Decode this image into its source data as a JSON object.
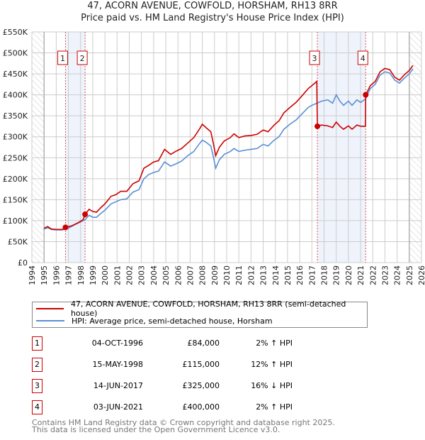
{
  "chart_data": {
    "type": "line",
    "title": "47, ACORN AVENUE, COWFOLD, HORSHAM, RH13 8RR",
    "subtitle": "Price paid vs. HM Land Registry's House Price Index (HPI)",
    "xlim": [
      1994,
      2026
    ],
    "ylim": [
      0,
      550000
    ],
    "x_ticks": [
      "1994",
      "1995",
      "1996",
      "1997",
      "1998",
      "1999",
      "2000",
      "2001",
      "2002",
      "2003",
      "2004",
      "2005",
      "2006",
      "2007",
      "2008",
      "2009",
      "2010",
      "2011",
      "2012",
      "2013",
      "2014",
      "2015",
      "2016",
      "2017",
      "2018",
      "2019",
      "2020",
      "2021",
      "2022",
      "2023",
      "2024",
      "2025",
      "2026"
    ],
    "y_ticks": [
      {
        "v": 0,
        "label": "£0"
      },
      {
        "v": 50000,
        "label": "£50K"
      },
      {
        "v": 100000,
        "label": "£100K"
      },
      {
        "v": 150000,
        "label": "£150K"
      },
      {
        "v": 200000,
        "label": "£200K"
      },
      {
        "v": 250000,
        "label": "£250K"
      },
      {
        "v": 300000,
        "label": "£300K"
      },
      {
        "v": 350000,
        "label": "£350K"
      },
      {
        "v": 400000,
        "label": "£400K"
      },
      {
        "v": 450000,
        "label": "£450K"
      },
      {
        "v": 500000,
        "label": "£500K"
      },
      {
        "v": 550000,
        "label": "£550K"
      }
    ],
    "grid": true,
    "hatched_ranges": [
      [
        1994,
        1995
      ],
      [
        2025,
        2026
      ]
    ],
    "shaded_ranges": [
      [
        1996.76,
        1998.37
      ],
      [
        2017.45,
        2021.42
      ]
    ],
    "series": [
      {
        "name": "47, ACORN AVENUE, COWFOLD, HORSHAM, RH13 8RR (semi-detached house)",
        "color": "#cc0000",
        "points": [
          [
            1995.0,
            82
          ],
          [
            1995.3,
            86
          ],
          [
            1995.6,
            80
          ],
          [
            1996.0,
            79
          ],
          [
            1996.5,
            79
          ],
          [
            1996.76,
            84
          ],
          [
            1997.3,
            88
          ],
          [
            1997.8,
            95
          ],
          [
            1998.2,
            102
          ],
          [
            1998.37,
            115
          ],
          [
            1998.7,
            127
          ],
          [
            1999.0,
            122
          ],
          [
            1999.3,
            120
          ],
          [
            1999.7,
            132
          ],
          [
            2000.0,
            140
          ],
          [
            2000.5,
            158
          ],
          [
            2000.9,
            162
          ],
          [
            2001.3,
            170
          ],
          [
            2001.8,
            170
          ],
          [
            2002.3,
            188
          ],
          [
            2002.8,
            195
          ],
          [
            2003.2,
            225
          ],
          [
            2003.6,
            232
          ],
          [
            2004.0,
            240
          ],
          [
            2004.4,
            243
          ],
          [
            2004.9,
            270
          ],
          [
            2005.4,
            258
          ],
          [
            2005.8,
            265
          ],
          [
            2006.3,
            272
          ],
          [
            2006.8,
            285
          ],
          [
            2007.3,
            298
          ],
          [
            2007.8,
            320
          ],
          [
            2008.0,
            330
          ],
          [
            2008.3,
            322
          ],
          [
            2008.7,
            312
          ],
          [
            2008.9,
            285
          ],
          [
            2009.1,
            255
          ],
          [
            2009.4,
            275
          ],
          [
            2009.8,
            290
          ],
          [
            2010.3,
            298
          ],
          [
            2010.6,
            307
          ],
          [
            2011.0,
            298
          ],
          [
            2011.5,
            302
          ],
          [
            2012.0,
            303
          ],
          [
            2012.5,
            306
          ],
          [
            2013.0,
            316
          ],
          [
            2013.4,
            312
          ],
          [
            2013.9,
            328
          ],
          [
            2014.3,
            338
          ],
          [
            2014.7,
            357
          ],
          [
            2015.2,
            370
          ],
          [
            2015.7,
            382
          ],
          [
            2016.2,
            398
          ],
          [
            2016.7,
            415
          ],
          [
            2017.0,
            422
          ],
          [
            2017.4,
            432
          ],
          [
            2017.45,
            325
          ],
          [
            2017.8,
            328
          ],
          [
            2018.3,
            326
          ],
          [
            2018.7,
            322
          ],
          [
            2019.0,
            335
          ],
          [
            2019.3,
            325
          ],
          [
            2019.6,
            318
          ],
          [
            2020.0,
            326
          ],
          [
            2020.3,
            318
          ],
          [
            2020.7,
            328
          ],
          [
            2021.0,
            325
          ],
          [
            2021.4,
            325
          ],
          [
            2021.42,
            400
          ],
          [
            2021.8,
            422
          ],
          [
            2022.2,
            432
          ],
          [
            2022.6,
            455
          ],
          [
            2023.0,
            463
          ],
          [
            2023.4,
            460
          ],
          [
            2023.8,
            442
          ],
          [
            2024.2,
            435
          ],
          [
            2024.6,
            448
          ],
          [
            2025.0,
            458
          ],
          [
            2025.3,
            470
          ]
        ]
      },
      {
        "name": "HPI: Average price, semi-detached house, Horsham",
        "color": "#5b8fd4",
        "points": [
          [
            1995.0,
            80
          ],
          [
            1995.3,
            83
          ],
          [
            1995.6,
            79
          ],
          [
            1996.0,
            78
          ],
          [
            1996.5,
            78
          ],
          [
            1997.0,
            82
          ],
          [
            1997.5,
            90
          ],
          [
            1998.0,
            97
          ],
          [
            1998.4,
            103
          ],
          [
            1998.7,
            113
          ],
          [
            1999.0,
            108
          ],
          [
            1999.3,
            108
          ],
          [
            1999.7,
            118
          ],
          [
            2000.0,
            125
          ],
          [
            2000.5,
            140
          ],
          [
            2000.9,
            145
          ],
          [
            2001.3,
            150
          ],
          [
            2001.8,
            152
          ],
          [
            2002.3,
            168
          ],
          [
            2002.8,
            174
          ],
          [
            2003.2,
            200
          ],
          [
            2003.6,
            210
          ],
          [
            2004.0,
            215
          ],
          [
            2004.4,
            218
          ],
          [
            2004.9,
            240
          ],
          [
            2005.4,
            230
          ],
          [
            2005.8,
            235
          ],
          [
            2006.3,
            242
          ],
          [
            2006.8,
            255
          ],
          [
            2007.3,
            265
          ],
          [
            2007.8,
            285
          ],
          [
            2008.0,
            292
          ],
          [
            2008.3,
            287
          ],
          [
            2008.7,
            278
          ],
          [
            2008.9,
            253
          ],
          [
            2009.1,
            225
          ],
          [
            2009.4,
            245
          ],
          [
            2009.8,
            258
          ],
          [
            2010.3,
            265
          ],
          [
            2010.6,
            272
          ],
          [
            2011.0,
            265
          ],
          [
            2011.5,
            268
          ],
          [
            2012.0,
            270
          ],
          [
            2012.5,
            272
          ],
          [
            2013.0,
            282
          ],
          [
            2013.4,
            278
          ],
          [
            2013.9,
            292
          ],
          [
            2014.3,
            300
          ],
          [
            2014.7,
            318
          ],
          [
            2015.2,
            330
          ],
          [
            2015.7,
            340
          ],
          [
            2016.2,
            355
          ],
          [
            2016.7,
            370
          ],
          [
            2017.0,
            375
          ],
          [
            2017.4,
            380
          ],
          [
            2017.8,
            385
          ],
          [
            2018.3,
            388
          ],
          [
            2018.7,
            380
          ],
          [
            2019.0,
            400
          ],
          [
            2019.3,
            385
          ],
          [
            2019.6,
            375
          ],
          [
            2020.0,
            385
          ],
          [
            2020.3,
            375
          ],
          [
            2020.7,
            388
          ],
          [
            2021.0,
            382
          ],
          [
            2021.4,
            390
          ],
          [
            2021.8,
            415
          ],
          [
            2022.2,
            425
          ],
          [
            2022.6,
            447
          ],
          [
            2023.0,
            455
          ],
          [
            2023.4,
            452
          ],
          [
            2023.8,
            435
          ],
          [
            2024.2,
            428
          ],
          [
            2024.6,
            440
          ],
          [
            2025.0,
            450
          ],
          [
            2025.3,
            462
          ]
        ]
      }
    ],
    "series_units": "thousands GBP",
    "sales": [
      {
        "label": "1",
        "x": 1996.76,
        "y": 84000
      },
      {
        "label": "2",
        "x": 1998.37,
        "y": 115000
      },
      {
        "label": "3",
        "x": 2017.45,
        "y": 325000
      },
      {
        "label": "4",
        "x": 2021.42,
        "y": 400000
      }
    ],
    "legend_placement": "bottom"
  },
  "table": [
    {
      "num": "1",
      "date": "04-OCT-1996",
      "price": "£84,000",
      "hpi": "2% ↑ HPI"
    },
    {
      "num": "2",
      "date": "15-MAY-1998",
      "price": "£115,000",
      "hpi": "12% ↑ HPI"
    },
    {
      "num": "3",
      "date": "14-JUN-2017",
      "price": "£325,000",
      "hpi": "16% ↓ HPI"
    },
    {
      "num": "4",
      "date": "03-JUN-2021",
      "price": "£400,000",
      "hpi": "2% ↑ HPI"
    }
  ],
  "footer": {
    "line1": "Contains HM Land Registry data © Crown copyright and database right 2025.",
    "line2": "This data is licensed under the Open Government Licence v3.0."
  }
}
